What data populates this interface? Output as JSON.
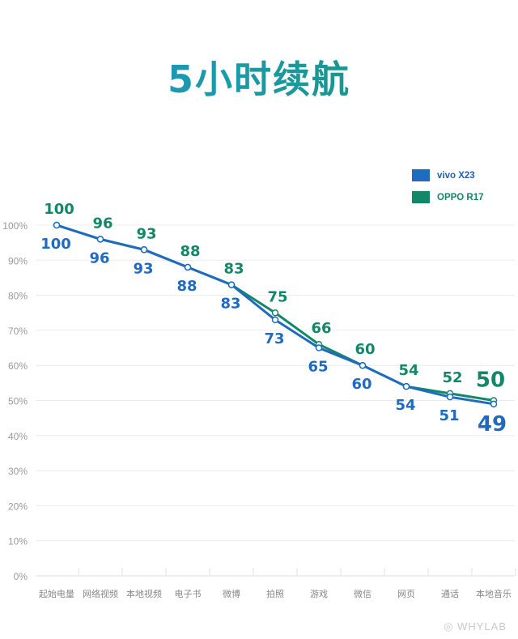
{
  "title": "5小时续航",
  "legend": [
    {
      "label": "vivo X23",
      "color": "#1f6bbf"
    },
    {
      "label": "OPPO R17",
      "color": "#128868"
    }
  ],
  "watermark": "WHYLAB",
  "chart_data": {
    "type": "line",
    "title": "5小时续航",
    "xlabel": "",
    "ylabel": "",
    "ylim": [
      0,
      100
    ],
    "yticks": [
      "0%",
      "10%",
      "20%",
      "30%",
      "40%",
      "50%",
      "60%",
      "70%",
      "80%",
      "90%",
      "100%"
    ],
    "categories": [
      "起始电量",
      "网络视频",
      "本地视频",
      "电子书",
      "微博",
      "拍照",
      "游戏",
      "微信",
      "网页",
      "通话",
      "本地音乐"
    ],
    "series": [
      {
        "name": "vivo X23",
        "color": "#1f6bbf",
        "values": [
          100,
          96,
          93,
          88,
          83,
          73,
          65,
          60,
          54,
          51,
          49
        ]
      },
      {
        "name": "OPPO R17",
        "color": "#128868",
        "values": [
          100,
          96,
          93,
          88,
          83,
          75,
          66,
          60,
          54,
          52,
          50
        ]
      }
    ],
    "grid": true,
    "legend_position": "top-right"
  }
}
